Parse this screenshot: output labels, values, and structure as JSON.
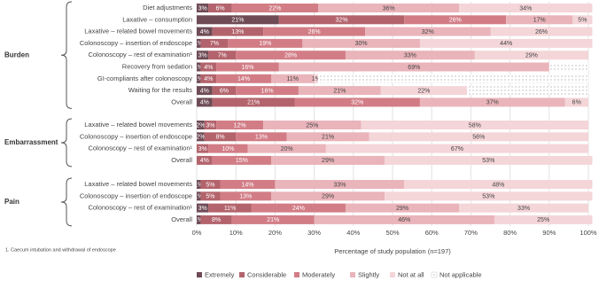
{
  "chart_data": {
    "type": "stacked-bar-horizontal",
    "x_label": "Percentage of study population (n=197)",
    "footnote": "1. Caecum intubation and withdrawal of endoscope",
    "xlim": [
      0,
      100
    ],
    "xticks": [
      {
        "value": 0,
        "label": "0%"
      },
      {
        "value": 10,
        "label": "10%"
      },
      {
        "value": 20,
        "label": "20%"
      },
      {
        "value": 30,
        "label": "30%"
      },
      {
        "value": 40,
        "label": "40%"
      },
      {
        "value": 50,
        "label": "50%"
      },
      {
        "value": 60,
        "label": "60%"
      },
      {
        "value": 70,
        "label": "70%"
      },
      {
        "value": 80,
        "label": "80%"
      },
      {
        "value": 90,
        "label": "90%"
      },
      {
        "value": 100,
        "label": "100%"
      }
    ],
    "grid": true,
    "legend": "bottom",
    "series": [
      {
        "name": "Extremely",
        "color": "#6e4b55"
      },
      {
        "name": "Considerable",
        "color": "#b3636c"
      },
      {
        "name": "Moderately",
        "color": "#d27d86"
      },
      {
        "name": "Slightly",
        "color": "#e9b4ba"
      },
      {
        "name": "Not at all",
        "color": "#f4d5d8"
      },
      {
        "name": "Not applicable",
        "color": "dots"
      }
    ],
    "panels": [
      {
        "group": "Burden",
        "categories": [
          "Diet adjustments",
          "Laxative – consumption",
          "Laxative – related bowel movements",
          "Colonoscopy – insertion of endoscope",
          "Colonoscopy – rest of examination¹",
          "Recovery from sedation",
          "GI-compliants after colonoscopy",
          "Waiting for the results",
          "Overall"
        ],
        "series": [
          {
            "values": [
              3,
              21,
              4,
              1,
              3,
              1,
              1,
              4,
              4
            ],
            "value_labels": [
              "3%",
              "21%",
              "4%",
              "1%",
              "3%",
              "1%",
              "1%",
              "4%",
              "4%"
            ]
          },
          {
            "values": [
              6,
              32,
              13,
              7,
              7,
              4,
              4,
              6,
              21
            ],
            "value_labels": [
              "6%",
              "32%",
              "13%",
              "7%",
              "7%",
              "4%",
              "4%",
              "6%",
              "21%"
            ]
          },
          {
            "values": [
              22,
              26,
              26,
              19,
              28,
              16,
              14,
              16,
              32
            ],
            "value_labels": [
              "22%",
              "26%",
              "26%",
              "19%",
              "28%",
              "16%",
              "14%",
              "16%",
              "32%"
            ]
          },
          {
            "values": [
              36,
              17,
              32,
              30,
              33,
              69,
              11,
              21,
              37
            ],
            "value_labels": [
              "36%",
              "17%",
              "32%",
              "30%",
              "33%",
              "69%",
              "11%",
              "21%",
              "37%"
            ]
          },
          {
            "values": [
              34,
              5,
              26,
              44,
              29,
              null,
              1,
              22,
              6
            ],
            "value_labels": [
              "34%",
              "5%",
              "26%",
              "44%",
              "29%",
              null,
              "1%",
              "22%",
              "6%"
            ]
          },
          {
            "values": [
              null,
              null,
              null,
              null,
              null,
              10,
              69,
              31,
              null
            ],
            "value_labels": [
              null,
              null,
              null,
              null,
              null,
              null,
              null,
              null,
              null
            ]
          }
        ]
      },
      {
        "group": "Embarrassment",
        "categories": [
          "Laxative – related bowel movements",
          "Colonoscopy – insertion of endoscope",
          "Colonoscopy – rest of examination¹",
          "Overall"
        ],
        "series": [
          {
            "values": [
              2,
              2,
              null,
              null
            ],
            "value_labels": [
              "2%",
              "2%",
              null,
              null
            ]
          },
          {
            "values": [
              3,
              8,
              3,
              4
            ],
            "value_labels": [
              "3%",
              "8%",
              "3%",
              "4%"
            ]
          },
          {
            "values": [
              12,
              13,
              10,
              15
            ],
            "value_labels": [
              "12%",
              "13%",
              "10%",
              "15%"
            ]
          },
          {
            "values": [
              25,
              21,
              20,
              29
            ],
            "value_labels": [
              "25%",
              "21%",
              "20%",
              "29%"
            ]
          },
          {
            "values": [
              58,
              56,
              67,
              53
            ],
            "value_labels": [
              "58%",
              "56%",
              "67%",
              "53%"
            ]
          },
          {
            "values": [
              null,
              null,
              null,
              null
            ],
            "value_labels": [
              null,
              null,
              null,
              null
            ]
          }
        ]
      },
      {
        "group": "Pain",
        "categories": [
          "Laxative – related bowel movements",
          "Colonoscopy – insertion of endoscope",
          "Colonoscopy – rest of examination¹",
          "Overall"
        ],
        "series": [
          {
            "values": [
              1,
              1,
              3,
              1
            ],
            "value_labels": [
              "1%",
              "1%",
              "3%",
              "1%"
            ]
          },
          {
            "values": [
              5,
              5,
              11,
              8
            ],
            "value_labels": [
              "5%",
              "5%",
              "11%",
              "8%"
            ]
          },
          {
            "values": [
              14,
              13,
              24,
              21
            ],
            "value_labels": [
              "14%",
              "13%",
              "24%",
              "21%"
            ]
          },
          {
            "values": [
              33,
              29,
              29,
              46
            ],
            "value_labels": [
              "33%",
              "29%",
              "29%",
              "46%"
            ]
          },
          {
            "values": [
              48,
              53,
              33,
              25
            ],
            "value_labels": [
              "48%",
              "53%",
              "33%",
              "25%"
            ]
          },
          {
            "values": [
              null,
              null,
              null,
              null
            ],
            "value_labels": [
              null,
              null,
              null,
              null
            ]
          }
        ]
      }
    ]
  }
}
